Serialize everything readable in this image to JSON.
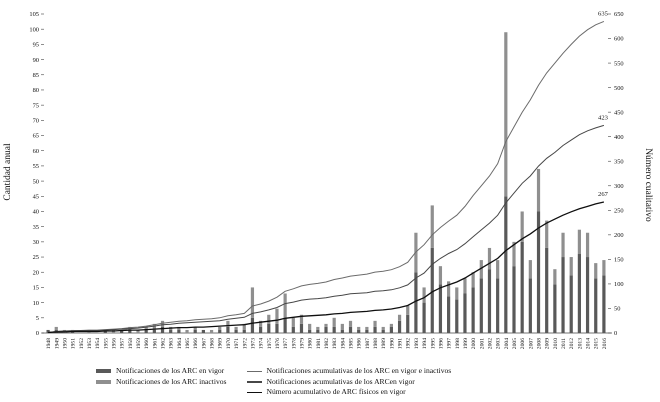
{
  "chart_data": {
    "type": "bar+line",
    "title": "",
    "ylabel_left": "Cantidad anual",
    "ylabel_right": "Número cualitativo",
    "y_left": {
      "min": 0,
      "max": 105,
      "step": 5
    },
    "y_right": {
      "min": 0,
      "max": 650,
      "step": 50
    },
    "grid": false,
    "legend_position": "bottom",
    "years": [
      1948,
      1949,
      1950,
      1951,
      1952,
      1953,
      1954,
      1955,
      1956,
      1957,
      1958,
      1959,
      1960,
      1961,
      1962,
      1963,
      1964,
      1965,
      1966,
      1967,
      1968,
      1969,
      1970,
      1971,
      1972,
      1973,
      1974,
      1975,
      1976,
      1977,
      1978,
      1979,
      1980,
      1981,
      1982,
      1983,
      1984,
      1985,
      1986,
      1987,
      1988,
      1989,
      1990,
      1991,
      1992,
      1993,
      1994,
      1995,
      1996,
      1997,
      1998,
      1999,
      2000,
      2001,
      2002,
      2003,
      2004,
      2005,
      2006,
      2007,
      2008,
      2009,
      2010,
      2011,
      2012,
      2013,
      2014,
      2015,
      2016
    ],
    "bar_series": [
      {
        "name": "Notificaciones de los ARC en vigor",
        "color": "#595959",
        "values": [
          1,
          1,
          0,
          1,
          0,
          0,
          0,
          1,
          0,
          1,
          1,
          0,
          1,
          1,
          2,
          1,
          1,
          0,
          1,
          1,
          0,
          1,
          2,
          1,
          1,
          5,
          2,
          3,
          3,
          5,
          2,
          3,
          1,
          1,
          2,
          2,
          1,
          2,
          1,
          1,
          2,
          1,
          2,
          4,
          6,
          20,
          10,
          28,
          16,
          12,
          11,
          13,
          15,
          18,
          21,
          18,
          45,
          22,
          30,
          18,
          40,
          28,
          16,
          25,
          19,
          26,
          25,
          18,
          19
        ]
      },
      {
        "name": "Notificaciones de los ARC inactivos",
        "color": "#8f8f8f",
        "values": [
          0,
          1,
          1,
          0,
          0,
          1,
          0,
          0,
          1,
          0,
          1,
          1,
          1,
          2,
          2,
          1,
          1,
          1,
          1,
          0,
          1,
          1,
          2,
          1,
          2,
          10,
          2,
          3,
          5,
          8,
          3,
          3,
          2,
          1,
          1,
          3,
          2,
          2,
          1,
          1,
          2,
          1,
          1,
          2,
          3,
          13,
          5,
          14,
          6,
          5,
          4,
          5,
          5,
          6,
          7,
          6,
          54,
          8,
          10,
          6,
          14,
          9,
          5,
          8,
          6,
          8,
          8,
          5,
          5
        ]
      }
    ],
    "line_series": [
      {
        "name": "Notificaciones acumulativas de los ARC en vigor e inactivos",
        "color": "#6b6b6b",
        "width": 1,
        "axis": "right",
        "end_label": "635",
        "values": [
          1,
          3,
          4,
          5,
          5,
          6,
          6,
          7,
          8,
          9,
          11,
          12,
          14,
          17,
          20,
          22,
          24,
          25,
          27,
          28,
          29,
          31,
          35,
          37,
          40,
          55,
          59,
          65,
          73,
          85,
          90,
          96,
          99,
          101,
          104,
          109,
          112,
          116,
          118,
          120,
          124,
          126,
          129,
          135,
          144,
          165,
          180,
          200,
          215,
          228,
          240,
          258,
          280,
          300,
          320,
          345,
          390,
          420,
          450,
          475,
          505,
          530,
          550,
          570,
          588,
          605,
          618,
          628,
          635
        ]
      },
      {
        "name": "Notificaciones acumulativas de los ARCen vigor",
        "color": "#474747",
        "width": 1,
        "axis": "right",
        "end_label": "423",
        "values": [
          1,
          3,
          4,
          4,
          5,
          5,
          5,
          6,
          7,
          8,
          9,
          10,
          12,
          14,
          17,
          18,
          20,
          21,
          22,
          23,
          24,
          25,
          28,
          30,
          32,
          40,
          43,
          47,
          52,
          60,
          63,
          67,
          69,
          70,
          72,
          75,
          77,
          80,
          81,
          82,
          85,
          86,
          88,
          92,
          98,
          112,
          122,
          140,
          152,
          162,
          170,
          182,
          196,
          210,
          224,
          240,
          265,
          285,
          305,
          320,
          340,
          356,
          368,
          382,
          393,
          404,
          412,
          418,
          423
        ]
      },
      {
        "name": "Número acumulativo de ARC físicos en vigor",
        "color": "#0f0f0f",
        "width": 1.3,
        "axis": "right",
        "end_label": "267",
        "values": [
          1,
          2,
          2,
          3,
          3,
          3,
          3,
          4,
          4,
          5,
          6,
          6,
          7,
          8,
          9,
          10,
          11,
          11,
          12,
          12,
          13,
          14,
          15,
          16,
          17,
          20,
          22,
          24,
          26,
          30,
          32,
          34,
          35,
          36,
          37,
          39,
          40,
          42,
          43,
          44,
          46,
          47,
          49,
          52,
          56,
          65,
          72,
          84,
          92,
          98,
          104,
          112,
          122,
          132,
          142,
          152,
          168,
          180,
          192,
          202,
          214,
          224,
          232,
          240,
          247,
          253,
          258,
          263,
          267
        ]
      }
    ]
  }
}
